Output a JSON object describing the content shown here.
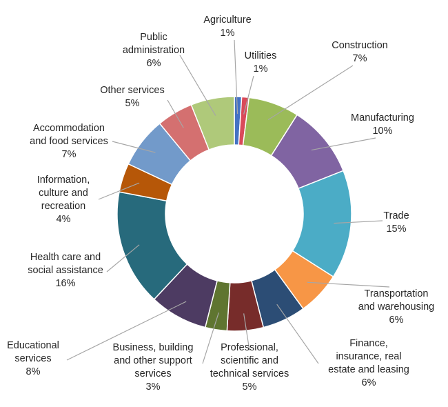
{
  "chart_data": {
    "type": "donut",
    "title": "",
    "unit": "%",
    "slices": [
      {
        "name": "Agriculture",
        "value": 1,
        "label_lines": [
          "Agriculture"
        ],
        "pct": "1%",
        "color": "#4472c4"
      },
      {
        "name": "Utilities",
        "value": 1,
        "label_lines": [
          "Utilities"
        ],
        "pct": "1%",
        "color": "#d94a5a"
      },
      {
        "name": "Construction",
        "value": 7,
        "label_lines": [
          "Construction"
        ],
        "pct": "7%",
        "color": "#9bbb59"
      },
      {
        "name": "Manufacturing",
        "value": 10,
        "label_lines": [
          "Manufacturing"
        ],
        "pct": "10%",
        "color": "#8064a2"
      },
      {
        "name": "Trade",
        "value": 15,
        "label_lines": [
          "Trade"
        ],
        "pct": "15%",
        "color": "#4bacc6"
      },
      {
        "name": "Transportation and warehousing",
        "value": 6,
        "label_lines": [
          "Transportation",
          "and warehousing"
        ],
        "pct": "6%",
        "color": "#f79646"
      },
      {
        "name": "Finance, insurance, real estate and leasing",
        "value": 6,
        "label_lines": [
          "Finance,",
          "insurance, real",
          "estate and leasing"
        ],
        "pct": "6%",
        "color": "#2c4d75"
      },
      {
        "name": "Professional, scientific and technical services",
        "value": 5,
        "label_lines": [
          "Professional,",
          "scientific and",
          "technical services"
        ],
        "pct": "5%",
        "color": "#772c2a"
      },
      {
        "name": "Business, building and other support services",
        "value": 3,
        "label_lines": [
          "Business, building",
          "and other support",
          "services"
        ],
        "pct": "3%",
        "color": "#5f7530"
      },
      {
        "name": "Educational services",
        "value": 8,
        "label_lines": [
          "Educational",
          "services"
        ],
        "pct": "8%",
        "color": "#4d3b62"
      },
      {
        "name": "Health care and social assistance",
        "value": 16,
        "label_lines": [
          "Health care and",
          "social assistance"
        ],
        "pct": "16%",
        "color": "#276a7c"
      },
      {
        "name": "Information, culture and recreation",
        "value": 4,
        "label_lines": [
          "Information,",
          "culture and",
          "recreation"
        ],
        "pct": "4%",
        "color": "#b65708"
      },
      {
        "name": "Accommodation and food services",
        "value": 7,
        "label_lines": [
          "Accommodation",
          "and food services"
        ],
        "pct": "7%",
        "color": "#729aca"
      },
      {
        "name": "Other services",
        "value": 5,
        "label_lines": [
          "Other services"
        ],
        "pct": "5%",
        "color": "#d47070"
      },
      {
        "name": "Public administration",
        "value": 6,
        "label_lines": [
          "Public",
          "administration"
        ],
        "pct": "6%",
        "color": "#afc97a"
      }
    ]
  }
}
